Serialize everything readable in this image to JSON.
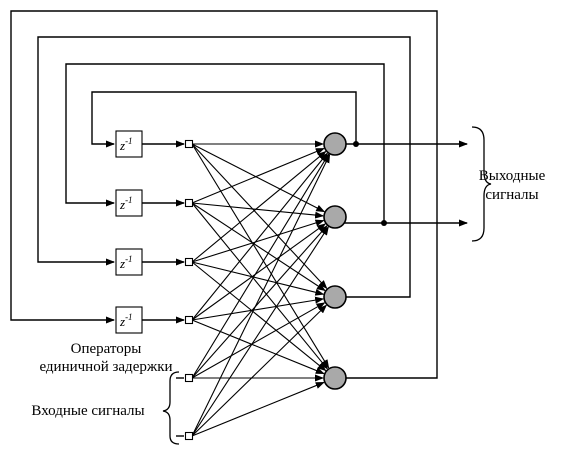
{
  "delay_operator": {
    "symbol": "z",
    "exponent": "-1"
  },
  "labels": {
    "operators_line1": "Операторы",
    "operators_line2": "единичной задержки",
    "inputs": "Входные сигналы",
    "outputs_line1": "Выходные",
    "outputs_line2": "сигналы"
  },
  "counts": {
    "delay_units": 4,
    "input_nodes": 2,
    "neurons": 4,
    "outputs": 2
  },
  "colors": {
    "line": "#000000",
    "neuron_fill": "#a9a9a9",
    "background": "#ffffff"
  }
}
